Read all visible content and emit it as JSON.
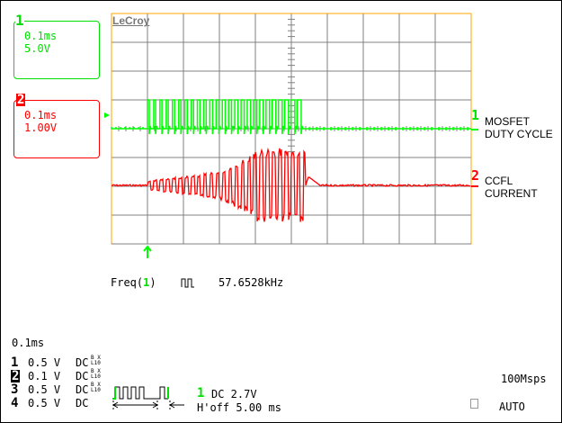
{
  "brand": "LeCroy",
  "colors": {
    "ch1": "#00ff00",
    "ch2": "#ff0000",
    "grid": "#808080",
    "frame": "#ffa500"
  },
  "channel_boxes": [
    {
      "number": "1",
      "timebase": "0.1ms",
      "scale": "5.0V"
    },
    {
      "number": "2",
      "timebase": "0.1ms",
      "scale": "1.00V"
    }
  ],
  "trace_labels": {
    "ch1_marker": "1",
    "ch1_line1": "MOSFET",
    "ch1_line2": "DUTY CYCLE",
    "ch2_marker": "2",
    "ch2_line1": "CCFL",
    "ch2_line2": "CURRENT"
  },
  "measurement": {
    "label_prefix": "Freq(",
    "channel": "1",
    "label_suffix": ")",
    "value": "57.6528kHz"
  },
  "timebase": "0.1ms",
  "channel_settings": [
    {
      "num": "1",
      "volts": "0.5 V",
      "coupling": "DC"
    },
    {
      "num": "2",
      "volts": "0.1 V",
      "coupling": "DC"
    },
    {
      "num": "3",
      "volts": "0.5 V",
      "coupling": "DC"
    },
    {
      "num": "4",
      "volts": "0.5 V",
      "coupling": "DC"
    }
  ],
  "coupling_suffix_top": "B X",
  "coupling_suffix_bottom": "L10",
  "trigger": {
    "source": "1",
    "level": "DC 2.7V",
    "holdoff": "H'off 5.00 ms"
  },
  "sample_rate": "100Msps",
  "trigger_mode": "AUTO",
  "chart_data": {
    "type": "line",
    "title": "",
    "x_unit": "ms",
    "x_divisions": 10,
    "y_divisions": 8,
    "time_per_div_ms": 0.1,
    "x_range_ms": [
      0,
      1.0
    ],
    "grid": true,
    "trigger_position_ms": 0.1,
    "series": [
      {
        "name": "MOSFET DUTY CYCLE",
        "volts_per_div": 5.0,
        "waveform": "pulse burst",
        "frequency_khz": 57.6528,
        "burst_start_ms": 0.1,
        "burst_end_ms": 0.53,
        "high_level_div": 1.0
      },
      {
        "name": "CCFL CURRENT",
        "volts_per_div": 1.0,
        "waveform": "oscillating burst",
        "frequency_khz": 57.6528,
        "burst_start_ms": 0.1,
        "burst_end_ms": 0.54,
        "peak_amplitude_div": 1.3
      }
    ]
  }
}
